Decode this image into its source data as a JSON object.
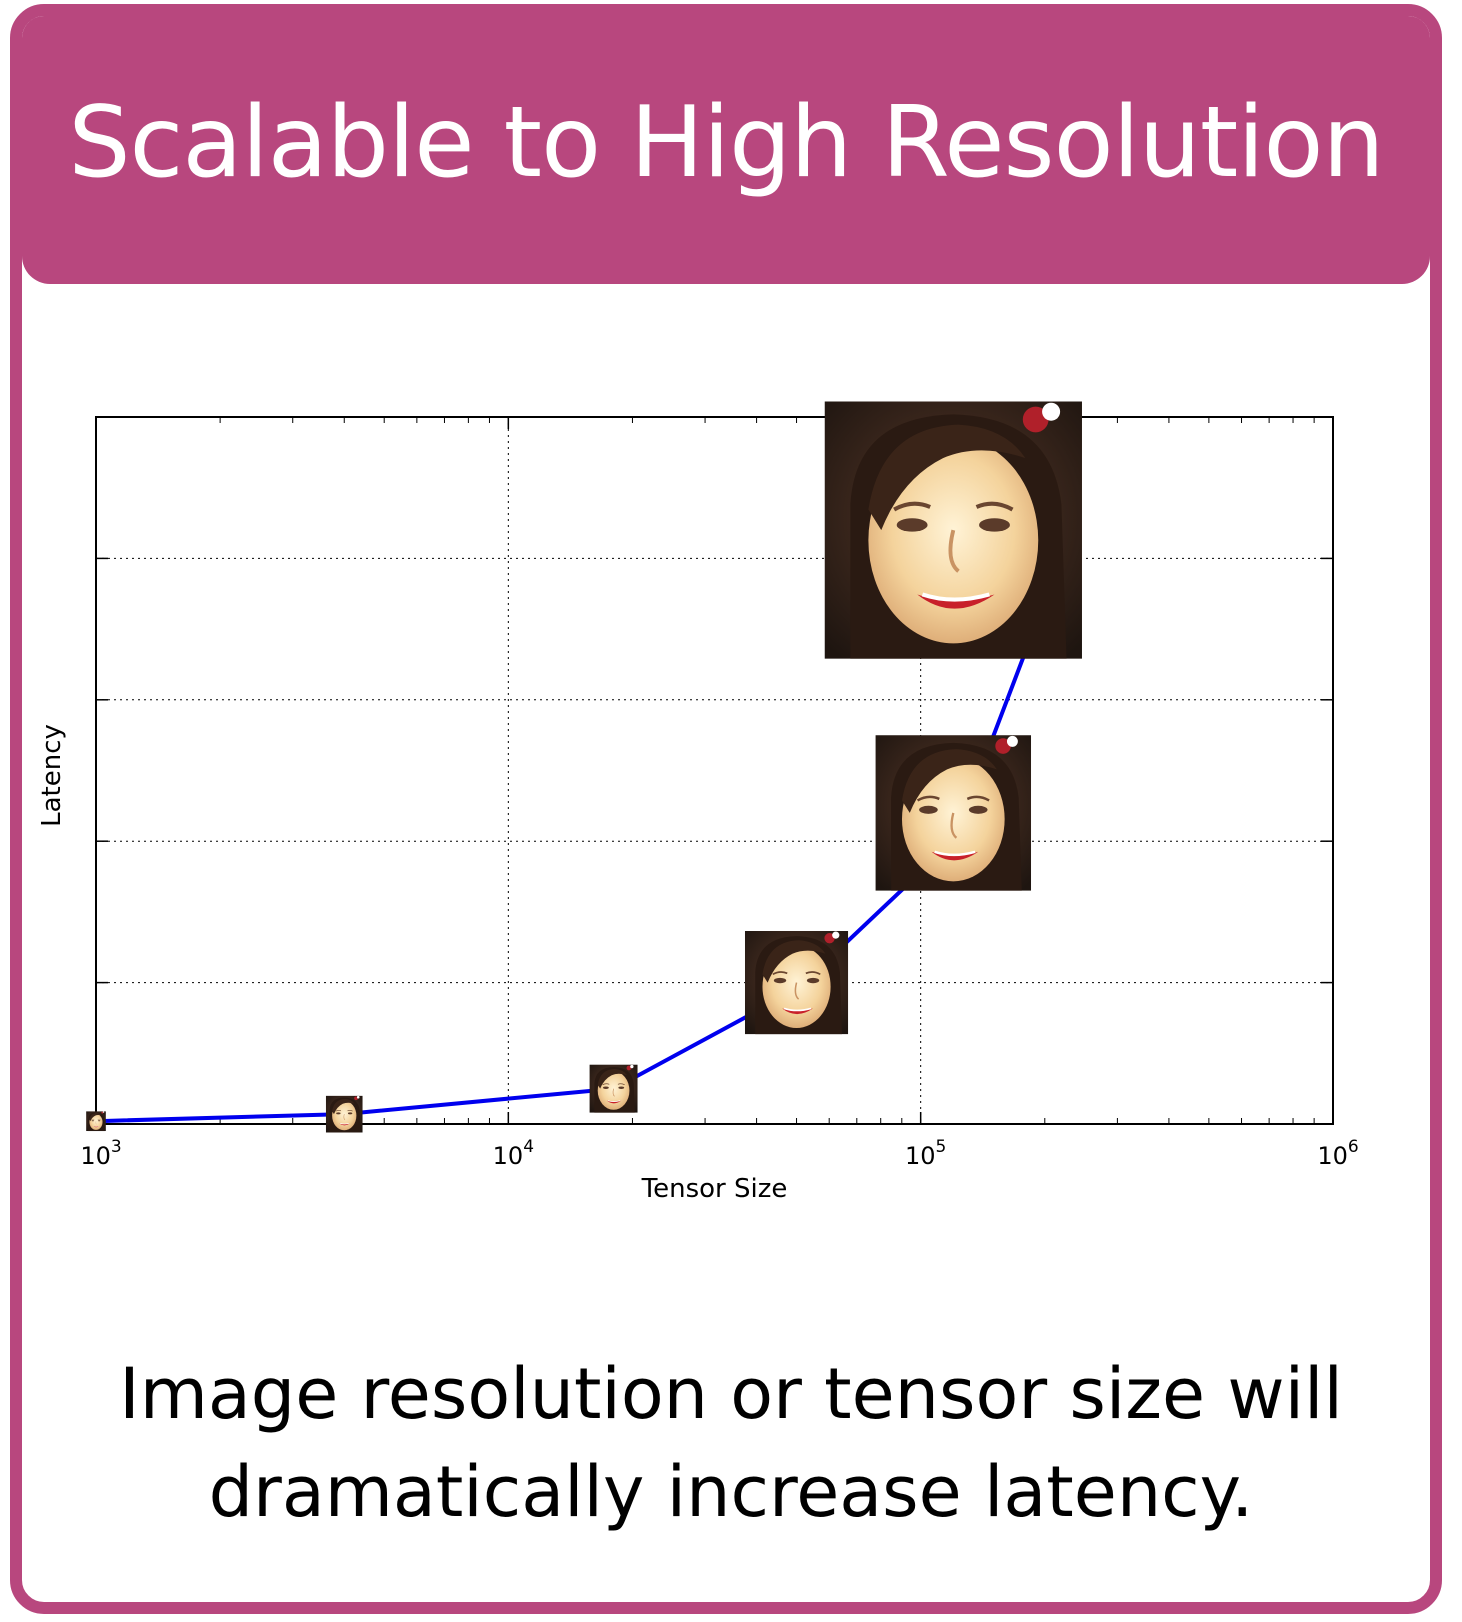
{
  "header": {
    "title": "Scalable to High Resolution"
  },
  "caption": {
    "line1": "Image resolution or tensor size will",
    "line2": "dramatically increase latency."
  },
  "colors": {
    "accent": "#b8477e",
    "line": "#0000ee"
  },
  "chart_data": {
    "type": "line",
    "title": "",
    "xlabel": "Tensor Size",
    "ylabel": "Latency",
    "x_scale": "log",
    "xlim": [
      1000,
      1000000
    ],
    "ylim": [
      0,
      5
    ],
    "x_ticks": [
      {
        "base": "10",
        "exp": "3"
      },
      {
        "base": "10",
        "exp": "4"
      },
      {
        "base": "10",
        "exp": "5"
      },
      {
        "base": "10",
        "exp": "6"
      }
    ],
    "grid": true,
    "series": [
      {
        "x": [
          1000,
          4000,
          18000,
          50000,
          120000,
          200000
        ],
        "y": [
          0.02,
          0.07,
          0.25,
          0.95,
          2.0,
          3.7
        ]
      }
    ],
    "marker_images": [
      {
        "icon": "face-thumbnail-icon",
        "x": 1000,
        "y": 0.02,
        "size": 0.14
      },
      {
        "icon": "face-thumbnail-icon",
        "x": 4000,
        "y": 0.07,
        "size": 0.26
      },
      {
        "icon": "face-thumbnail-icon",
        "x": 18000,
        "y": 0.25,
        "size": 0.34
      },
      {
        "icon": "face-thumbnail-icon",
        "x": 50000,
        "y": 1.0,
        "size": 0.73
      },
      {
        "icon": "face-thumbnail-icon",
        "x": 120000,
        "y": 2.2,
        "size": 1.1
      },
      {
        "icon": "face-thumbnail-icon",
        "x": 120000,
        "y": 4.2,
        "size": 1.82
      }
    ]
  }
}
